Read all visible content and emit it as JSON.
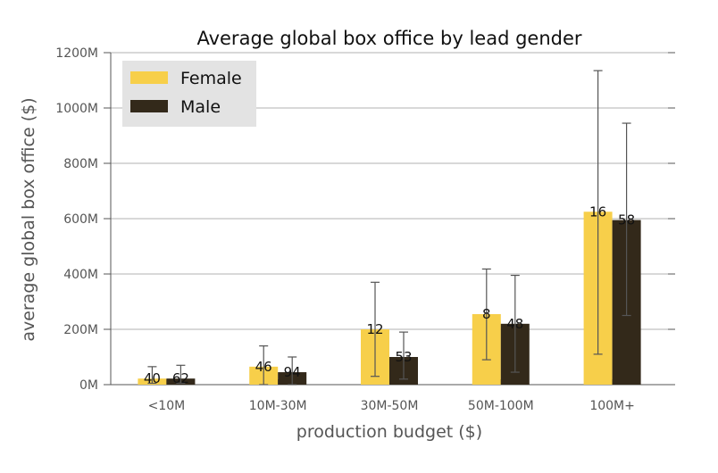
{
  "chart_data": {
    "type": "bar",
    "title": "Average global box office by lead gender",
    "xlabel": "production budget ($)",
    "ylabel": "average global box office ($)",
    "categories": [
      "<10M",
      "10M-30M",
      "30M-50M",
      "50M-100M",
      "100M+"
    ],
    "ylim": [
      0,
      1200
    ],
    "yticks": [
      0,
      200,
      400,
      600,
      800,
      1000,
      1200
    ],
    "ytick_labels": [
      "0M",
      "200M",
      "400M",
      "600M",
      "800M",
      "1000M",
      "1200M"
    ],
    "grid": true,
    "legend_position": "top-left",
    "series": [
      {
        "name": "Female",
        "color": "#f7cf4a",
        "values": [
          22,
          65,
          200,
          255,
          625
        ],
        "error_low": [
          5,
          0,
          30,
          90,
          110
        ],
        "error_high": [
          65,
          140,
          370,
          418,
          1135
        ],
        "counts": [
          "40",
          "46",
          "12",
          "8",
          "16"
        ]
      },
      {
        "name": "Male",
        "color": "#33291a",
        "values": [
          22,
          45,
          100,
          220,
          595
        ],
        "error_low": [
          5,
          0,
          20,
          45,
          250
        ],
        "error_high": [
          70,
          100,
          190,
          395,
          945
        ],
        "counts": [
          "62",
          "94",
          "53",
          "48",
          "58"
        ]
      }
    ]
  }
}
